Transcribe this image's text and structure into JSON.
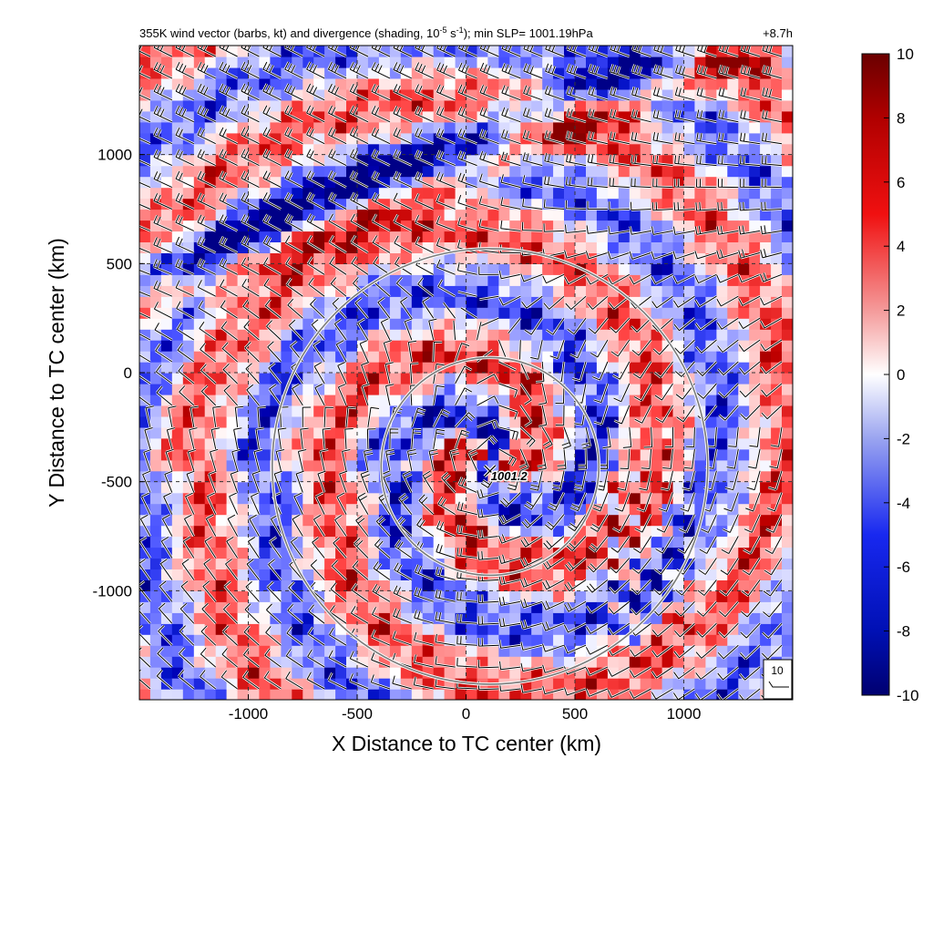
{
  "chart_data": {
    "type": "heatmap",
    "title_main": "355K wind vector (barbs, kt) and divergence (shading, 10",
    "title_exp1": "-5",
    "title_mid": " s",
    "title_exp2": "-1",
    "title_tail": "); min SLP= 1001.19hPa",
    "time_label": "+8.7h",
    "xlabel": "X Distance to TC center (km)",
    "ylabel": "Y Distance to TC center (km)",
    "xlim": [
      -1500,
      1500
    ],
    "ylim": [
      -1500,
      1500
    ],
    "x_ticks": [
      -1000,
      -500,
      0,
      500,
      1000
    ],
    "y_ticks": [
      -1000,
      -500,
      0,
      500,
      1000
    ],
    "x_tick_labels": [
      "-1000",
      "-500",
      "0",
      "500",
      "1000"
    ],
    "y_tick_labels": [
      "-1000",
      "-500",
      "0",
      "500",
      "1000"
    ],
    "grid": true,
    "colorbar": {
      "range": [
        -10,
        10
      ],
      "ticks": [
        "10",
        "8",
        "6",
        "4",
        "2",
        "0",
        "-2",
        "-4",
        "-6",
        "-8",
        "-10"
      ],
      "colors": [
        "#00008a",
        "#2a3ae0",
        "#ffffff",
        "#e02020",
        "#7a0000"
      ]
    },
    "center_marker": {
      "x": 110,
      "y": -430,
      "label": "1001.2"
    },
    "circles_radius_km": [
      500,
      1000
    ],
    "circle_center": {
      "x": 110,
      "y": -430
    },
    "barb_reference": {
      "label": "10"
    },
    "colors": {
      "positive": "#c00000",
      "negative": "#1020b0",
      "circle": "#7a7a7a",
      "grid": "#333333"
    }
  }
}
